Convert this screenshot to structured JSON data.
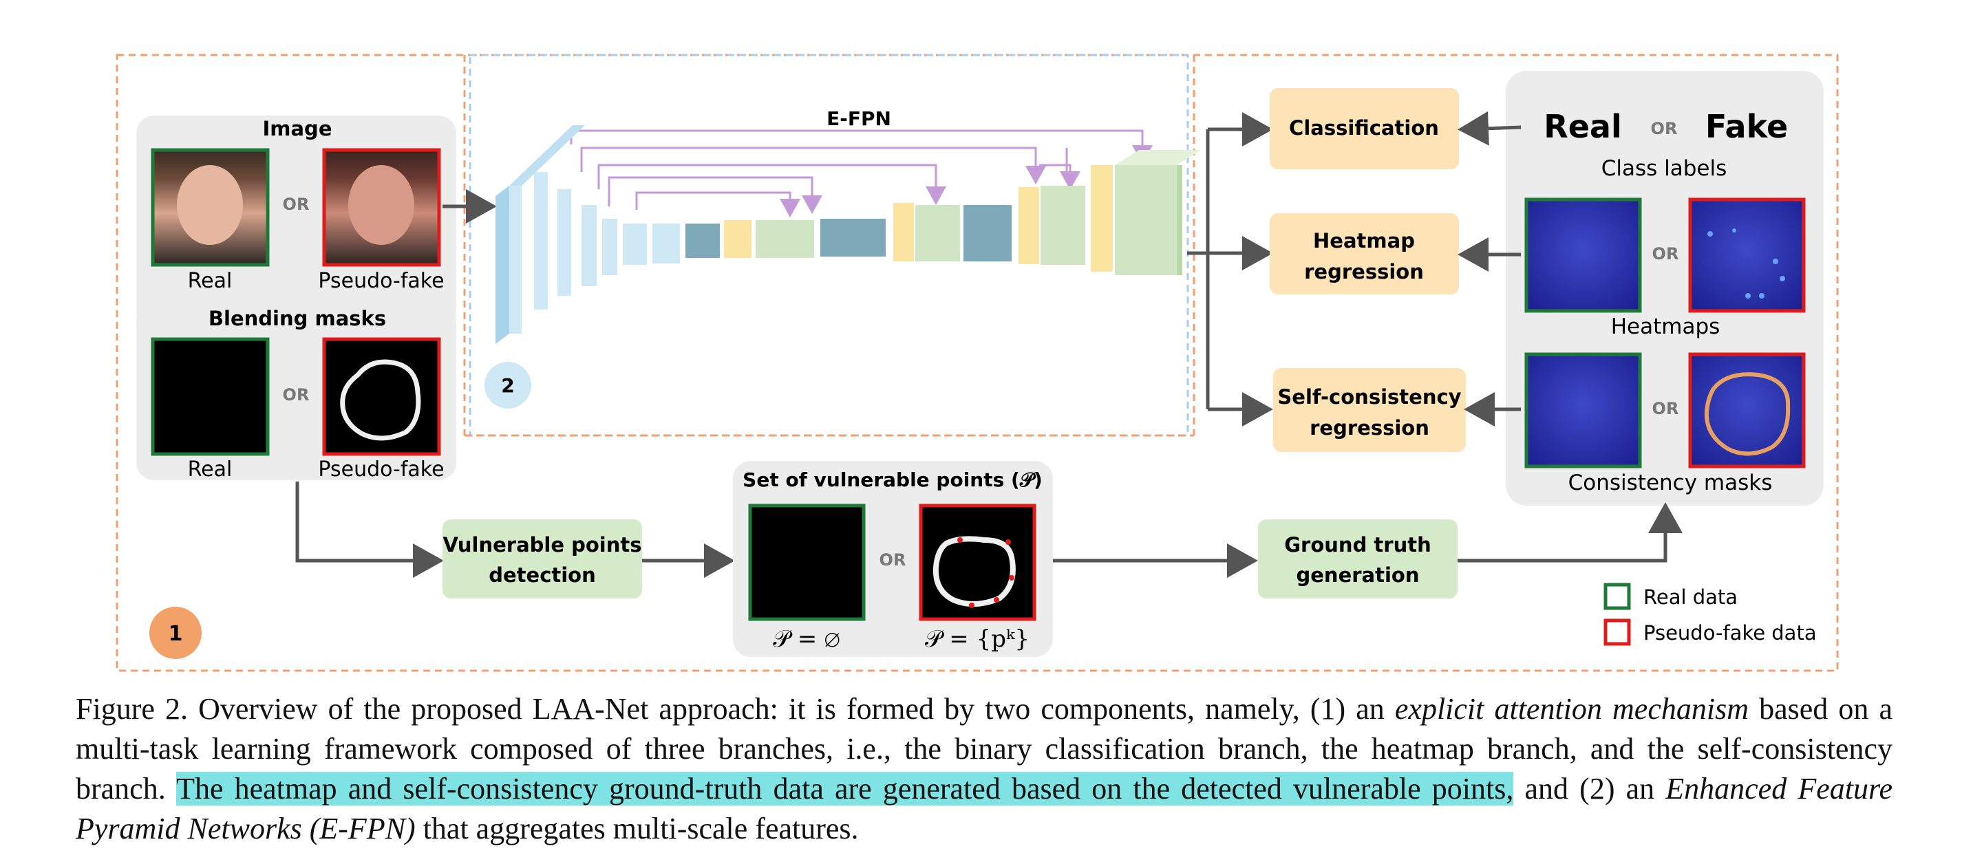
{
  "figure": {
    "image_group": {
      "title": "Image",
      "or": "OR",
      "real_label": "Real",
      "fake_label": "Pseudo-fake"
    },
    "mask_group": {
      "title": "Blending masks",
      "or": "OR",
      "real_label": "Real",
      "fake_label": "Pseudo-fake"
    },
    "efpn_label": "E-FPN",
    "region_1": "1",
    "region_2": "2",
    "heads": {
      "classification": "Classification",
      "heatmap": [
        "Heatmap",
        "regression"
      ],
      "consistency": [
        "Self-consistency",
        "regression"
      ]
    },
    "targets": {
      "real": "Real",
      "or": "OR",
      "fake": "Fake",
      "class_labels": "Class labels",
      "heatmaps": "Heatmaps",
      "consistency_masks": "Consistency masks"
    },
    "vpd": [
      "Vulnerable points",
      "detection"
    ],
    "gtg": [
      "Ground truth",
      "generation"
    ],
    "vp_set": {
      "title": "Set of vulnerable points (𝒫)",
      "or": "OR",
      "empty": "𝒫 = ∅",
      "set": "𝒫 = {pᵏ}"
    },
    "legend": {
      "real": "Real data",
      "fake": "Pseudo-fake data"
    },
    "colors": {
      "real_border": "#1f7a3a",
      "fake_border": "#e01b1b",
      "orange_dash": "#f0a070",
      "blue_dash": "#a9cdee",
      "head_box": "#fde3b6",
      "green_box": "#d4eac8",
      "skip_arrow": "#c49ad8",
      "heat_blue": "#2a2fae"
    }
  },
  "caption": {
    "prefix": "Figure 2.  Overview of the proposed LAA-Net approach:  it is formed by two components, namely, (1) an ",
    "italic1": "explicit attention mechanism",
    "mid1": " based on a multi-task learning framework composed of three branches, i.e., the binary classification branch, the heatmap branch, and the self-consistency branch.  ",
    "highlight": "The heatmap and self-consistency ground-truth data are generated based on the detected vulnerable points,",
    "mid2": " and (2) an ",
    "italic2": "Enhanced Feature Pyramid Networks (E-FPN)",
    "suffix": " that aggregates multi-scale features."
  }
}
